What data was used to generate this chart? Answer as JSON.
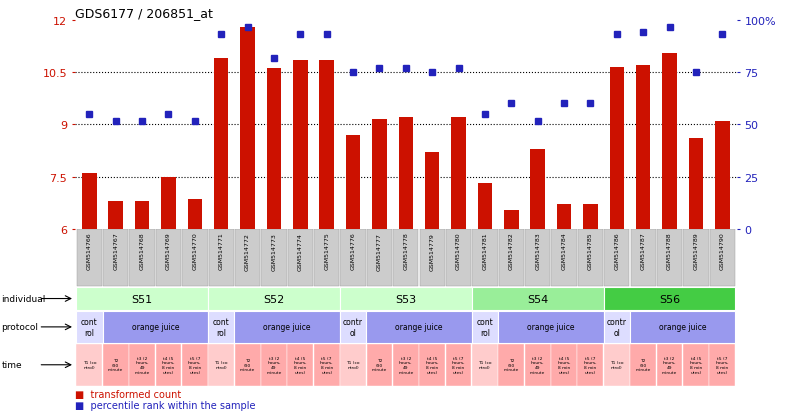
{
  "title": "GDS6177 / 206851_at",
  "samples": [
    "GSM514766",
    "GSM514767",
    "GSM514768",
    "GSM514769",
    "GSM514770",
    "GSM514771",
    "GSM514772",
    "GSM514773",
    "GSM514774",
    "GSM514775",
    "GSM514776",
    "GSM514777",
    "GSM514778",
    "GSM514779",
    "GSM514780",
    "GSM514781",
    "GSM514782",
    "GSM514783",
    "GSM514784",
    "GSM514785",
    "GSM514786",
    "GSM514787",
    "GSM514788",
    "GSM514789",
    "GSM514790"
  ],
  "bar_values": [
    7.6,
    6.8,
    6.8,
    7.5,
    6.85,
    10.9,
    11.8,
    10.6,
    10.85,
    10.85,
    8.7,
    9.15,
    9.2,
    8.2,
    9.2,
    7.3,
    6.55,
    8.3,
    6.7,
    6.7,
    10.65,
    10.7,
    11.05,
    8.6,
    9.1
  ],
  "dot_values": [
    9.3,
    9.1,
    9.1,
    9.3,
    9.1,
    11.6,
    11.8,
    10.9,
    11.6,
    11.6,
    10.5,
    10.6,
    10.6,
    10.5,
    10.6,
    9.3,
    9.6,
    9.1,
    9.6,
    9.6,
    11.6,
    11.65,
    11.8,
    10.5,
    11.6
  ],
  "ylim": [
    6,
    12
  ],
  "yticks": [
    6,
    7.5,
    9.0,
    10.5,
    12
  ],
  "ytick_labels": [
    "6",
    "7.5",
    "9",
    "10.5",
    "12"
  ],
  "right_yticks": [
    0,
    25,
    50,
    75,
    100
  ],
  "right_ytick_labels": [
    "0",
    "25",
    "50",
    "75",
    "100%"
  ],
  "dotted_lines": [
    7.5,
    9.0,
    10.5
  ],
  "bar_color": "#CC1100",
  "dot_color": "#2222BB",
  "individuals": [
    {
      "label": "S51",
      "start": 0,
      "end": 4,
      "color": "#CCFFCC"
    },
    {
      "label": "S52",
      "start": 5,
      "end": 9,
      "color": "#CCFFCC"
    },
    {
      "label": "S53",
      "start": 10,
      "end": 14,
      "color": "#CCFFCC"
    },
    {
      "label": "S54",
      "start": 15,
      "end": 19,
      "color": "#99EE99"
    },
    {
      "label": "S56",
      "start": 20,
      "end": 24,
      "color": "#44CC44"
    }
  ],
  "protocols": [
    {
      "label": "cont\nrol",
      "start": 0,
      "end": 0,
      "color": "#DDDDFF"
    },
    {
      "label": "orange juice",
      "start": 1,
      "end": 4,
      "color": "#9999EE"
    },
    {
      "label": "cont\nrol",
      "start": 5,
      "end": 5,
      "color": "#DDDDFF"
    },
    {
      "label": "orange juice",
      "start": 6,
      "end": 9,
      "color": "#9999EE"
    },
    {
      "label": "contr\nol",
      "start": 10,
      "end": 10,
      "color": "#DDDDFF"
    },
    {
      "label": "orange juice",
      "start": 11,
      "end": 14,
      "color": "#9999EE"
    },
    {
      "label": "cont\nrol",
      "start": 15,
      "end": 15,
      "color": "#DDDDFF"
    },
    {
      "label": "orange juice",
      "start": 16,
      "end": 19,
      "color": "#9999EE"
    },
    {
      "label": "contr\nol",
      "start": 20,
      "end": 20,
      "color": "#DDDDFF"
    },
    {
      "label": "orange juice",
      "start": 21,
      "end": 24,
      "color": "#9999EE"
    }
  ],
  "time_labels_per_index": [
    "T1 (co\nntrol)",
    "T2\n(90\nminute",
    "t3 (2\nhours,\n49\nminute",
    "t4 (5\nhours,\n8 min\nutes)",
    "t5 (7\nhours,\n8 min\nutes)"
  ],
  "time_pattern": [
    0,
    1,
    2,
    3,
    4,
    0,
    1,
    2,
    3,
    4,
    0,
    1,
    2,
    3,
    4,
    0,
    1,
    2,
    3,
    4,
    0,
    1,
    2,
    3,
    4
  ],
  "time_ctrl_color": "#FFCCCC",
  "time_oj_color": "#FFAAAA",
  "legend_bar_label": "transformed count",
  "legend_dot_label": "percentile rank within the sample",
  "row_label_individual": "individual",
  "row_label_protocol": "protocol",
  "row_label_time": "time",
  "sample_box_color": "#CCCCCC",
  "bg_color": "#FFFFFF"
}
